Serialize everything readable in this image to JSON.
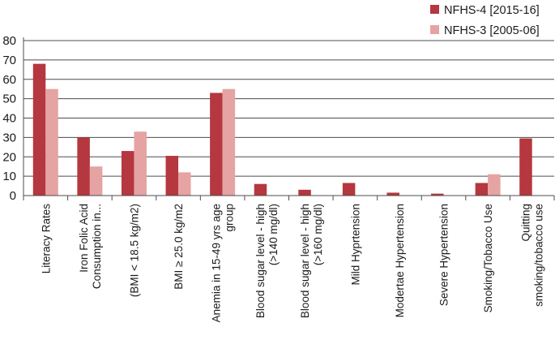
{
  "chart_data": {
    "type": "bar",
    "title": "",
    "xlabel": "",
    "ylabel": "",
    "ylim": [
      0,
      80
    ],
    "yticks": [
      0,
      10,
      20,
      30,
      40,
      50,
      60,
      70,
      80
    ],
    "grid": true,
    "legend_position": "top-right",
    "categories": [
      [
        "Literacy Rates"
      ],
      [
        "Iron Folic Acid",
        "Consumption in..."
      ],
      [
        "(BMI < 18.5 kg/m2)"
      ],
      [
        "BMI ≥ 25.0 kg/m2"
      ],
      [
        "Anemia in 15-49 yrs age",
        "group"
      ],
      [
        "Blood sugar level - high",
        "(>140 mg/dl)"
      ],
      [
        "Blood sugar level - high",
        "(>160 mg/dl)"
      ],
      [
        "Mild Hyprtension"
      ],
      [
        "Modertae Hypertension"
      ],
      [
        "Severe Hypertension"
      ],
      [
        "Smoking/Tobacco Use"
      ],
      [
        "Quitting",
        "smoking/tobacco use"
      ]
    ],
    "series": [
      {
        "name": "NFHS-4 [2015-16]",
        "color": "#b5373f",
        "values": [
          68,
          30,
          23,
          20.5,
          53,
          6,
          3,
          6.5,
          1.5,
          1,
          6.5,
          29.5
        ]
      },
      {
        "name": "NFHS-3 [2005-06]",
        "color": "#e6a3a3",
        "values": [
          55,
          15,
          33,
          12,
          55,
          0,
          0,
          0,
          0,
          0,
          11,
          0
        ]
      }
    ]
  }
}
